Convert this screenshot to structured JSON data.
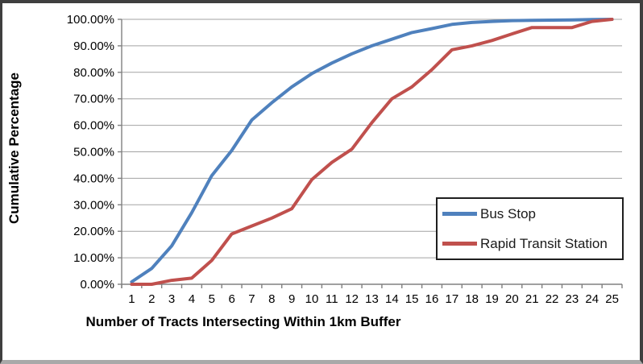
{
  "chart_data": {
    "type": "line",
    "title": "",
    "xlabel": "Number of Tracts Intersecting Within 1km Buffer",
    "ylabel": "Cumulative Percentage",
    "x": [
      1,
      2,
      3,
      4,
      5,
      6,
      7,
      8,
      9,
      10,
      11,
      12,
      13,
      14,
      15,
      16,
      17,
      18,
      19,
      20,
      21,
      22,
      23,
      24,
      25
    ],
    "x_tick_labels": [
      "1",
      "2",
      "3",
      "4",
      "5",
      "6",
      "7",
      "8",
      "9",
      "10",
      "11",
      "12",
      "13",
      "14",
      "15",
      "16",
      "17",
      "18",
      "19",
      "20",
      "21",
      "22",
      "23",
      "24",
      "25"
    ],
    "y_tick_labels": [
      "0.00%",
      "10.00%",
      "20.00%",
      "30.00%",
      "40.00%",
      "50.00%",
      "60.00%",
      "70.00%",
      "80.00%",
      "90.00%",
      "100.00%"
    ],
    "ylim": [
      0,
      100
    ],
    "y_step": 10,
    "grid": "horizontal",
    "legend_position": "inside-right",
    "series": [
      {
        "name": "Bus Stop",
        "color": "#4F81BD",
        "values": [
          0.9,
          6.0,
          14.5,
          27.0,
          41.0,
          50.5,
          62.0,
          68.5,
          74.5,
          79.5,
          83.5,
          87.0,
          90.0,
          92.5,
          95.0,
          96.5,
          98.1,
          98.8,
          99.2,
          99.5,
          99.6,
          99.7,
          99.8,
          99.9,
          100.0
        ]
      },
      {
        "name": "Rapid Transit Station",
        "color": "#C0504D",
        "values": [
          0.0,
          0.0,
          1.5,
          2.3,
          9.0,
          19.0,
          22.0,
          25.0,
          28.5,
          39.5,
          46.0,
          51.0,
          61.0,
          70.0,
          74.5,
          81.0,
          88.5,
          90.0,
          92.0,
          94.5,
          96.9,
          96.9,
          96.9,
          99.2,
          100.0
        ]
      }
    ]
  },
  "colors": {
    "background": "#FFFFFF",
    "gridline": "#A3A3A3",
    "axis": "#808080",
    "tick_text": "#000000",
    "legend_border": "#1F1F1F",
    "legend_text": "#1A1A1A",
    "chart_border": "#3F3F3F"
  }
}
